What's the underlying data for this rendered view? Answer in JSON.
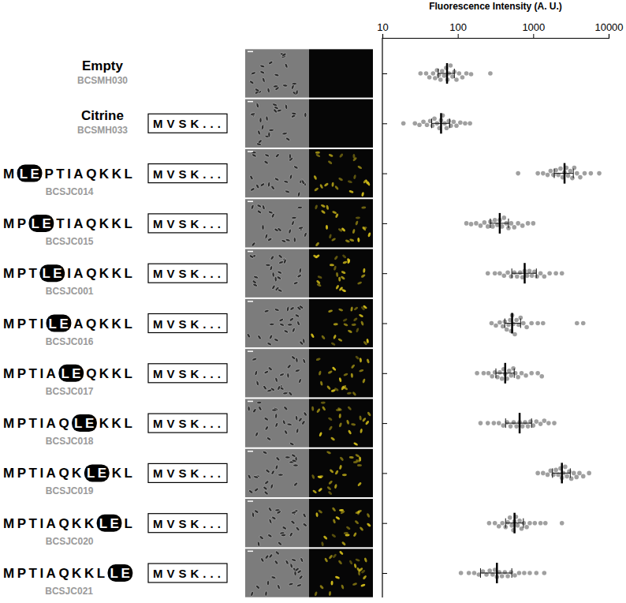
{
  "chart_data": {
    "type": "strip",
    "x_label": "Fluorescence Intensity (A. U.)",
    "log": "x",
    "xlim": [
      10,
      10000
    ],
    "xticks": [
      10,
      100,
      1000,
      10000
    ],
    "tick_labels": "x",
    "color": "#a0a0a0",
    "rows": [
      {
        "name": "Empty",
        "id": "BCSMH030",
        "values": [
          32,
          38,
          42,
          47,
          50,
          53,
          56,
          59,
          62,
          66,
          70,
          73,
          76,
          80,
          85,
          90,
          96,
          104,
          115,
          130,
          150,
          270
        ],
        "median": 72,
        "q1": 55,
        "q3": 90
      },
      {
        "name": "Citrine",
        "id": "BCSMH033",
        "fusion": "MVSK...",
        "values": [
          19,
          27,
          31,
          35,
          39,
          43,
          46,
          49,
          53,
          57,
          60,
          63,
          67,
          71,
          76,
          81,
          88,
          96,
          108,
          125,
          145
        ],
        "median": 60,
        "q1": 45,
        "q3": 78
      },
      {
        "peptide": {
          "prefix": "M",
          "highlight": "LE",
          "suffix": "PTIAQKKL"
        },
        "id": "BCSJC014",
        "fusion": "MVSK...",
        "values": [
          630,
          1150,
          1350,
          1550,
          1700,
          1850,
          2000,
          2150,
          2300,
          2450,
          2600,
          2750,
          2900,
          3100,
          3300,
          3500,
          3800,
          4200,
          4800,
          5800,
          7500
        ],
        "median": 2600,
        "q1": 1900,
        "q3": 3400
      },
      {
        "peptide": {
          "prefix": "MP",
          "highlight": "LE",
          "suffix": "TIAQKKL"
        },
        "id": "BCSJC015",
        "fusion": "MVSK...",
        "values": [
          130,
          150,
          175,
          200,
          225,
          250,
          270,
          290,
          310,
          335,
          360,
          385,
          410,
          440,
          470,
          510,
          560,
          630,
          720,
          850,
          1000
        ],
        "median": 360,
        "q1": 270,
        "q3": 470
      },
      {
        "peptide": {
          "prefix": "MPT",
          "highlight": "LE",
          "suffix": "IAQKKL"
        },
        "id": "BCSJC001",
        "fusion": "MVSK...",
        "values": [
          250,
          310,
          360,
          410,
          460,
          510,
          560,
          610,
          670,
          720,
          770,
          830,
          890,
          960,
          1040,
          1120,
          1250,
          1400,
          1650,
          2000,
          2400
        ],
        "median": 770,
        "q1": 520,
        "q3": 1100
      },
      {
        "peptide": {
          "prefix": "MPTI",
          "highlight": "LE",
          "suffix": "AQKKL"
        },
        "id": "BCSJC016",
        "fusion": "MVSK...",
        "values": [
          280,
          320,
          360,
          395,
          420,
          445,
          470,
          495,
          510,
          525,
          545,
          570,
          600,
          640,
          680,
          740,
          820,
          950,
          1150,
          1350,
          3800,
          4600
        ],
        "median": 525,
        "q1": 420,
        "q3": 680
      },
      {
        "peptide": {
          "prefix": "MPTIA",
          "highlight": "LE",
          "suffix": "QKKL"
        },
        "id": "BCSJC017",
        "fusion": "MVSK...",
        "values": [
          180,
          220,
          255,
          285,
          310,
          335,
          360,
          385,
          405,
          425,
          450,
          480,
          510,
          545,
          580,
          630,
          700,
          800,
          950,
          1150,
          1300
        ],
        "median": 425,
        "q1": 320,
        "q3": 560
      },
      {
        "peptide": {
          "prefix": "MPTIAQ",
          "highlight": "LE",
          "suffix": "KKL"
        },
        "id": "BCSJC018",
        "fusion": "MVSK...",
        "values": [
          200,
          250,
          300,
          350,
          400,
          450,
          500,
          550,
          600,
          660,
          720,
          780,
          850,
          920,
          1000,
          1100,
          1250,
          1400,
          1600,
          1900
        ],
        "median": 660,
        "q1": 430,
        "q3": 950
      },
      {
        "peptide": {
          "prefix": "MPTIAQK",
          "highlight": "LE",
          "suffix": "KL"
        },
        "id": "BCSJC019",
        "fusion": "MVSK...",
        "values": [
          1150,
          1350,
          1550,
          1700,
          1850,
          2000,
          2150,
          2300,
          2400,
          2500,
          2650,
          2800,
          3000,
          3200,
          3450,
          3750,
          4100,
          4600,
          5500
        ],
        "median": 2400,
        "q1": 1800,
        "q3": 3100
      },
      {
        "peptide": {
          "prefix": "MPTIAQKK",
          "highlight": "LE",
          "suffix": "L"
        },
        "id": "BCSJC020",
        "fusion": "MVSK...",
        "values": [
          260,
          310,
          350,
          390,
          430,
          460,
          490,
          520,
          545,
          565,
          590,
          620,
          660,
          700,
          750,
          820,
          900,
          1050,
          1250,
          1450,
          2400
        ],
        "median": 565,
        "q1": 430,
        "q3": 740
      },
      {
        "peptide": {
          "prefix": "MPTIAQKKL",
          "highlight": "LE"
        },
        "id": "BCSJC021",
        "fusion": "MVSK...",
        "values": [
          110,
          140,
          165,
          190,
          215,
          240,
          265,
          290,
          310,
          330,
          355,
          385,
          420,
          460,
          510,
          570,
          650,
          760,
          900,
          1100,
          1400
        ],
        "median": 330,
        "q1": 200,
        "q3": 520
      }
    ]
  }
}
